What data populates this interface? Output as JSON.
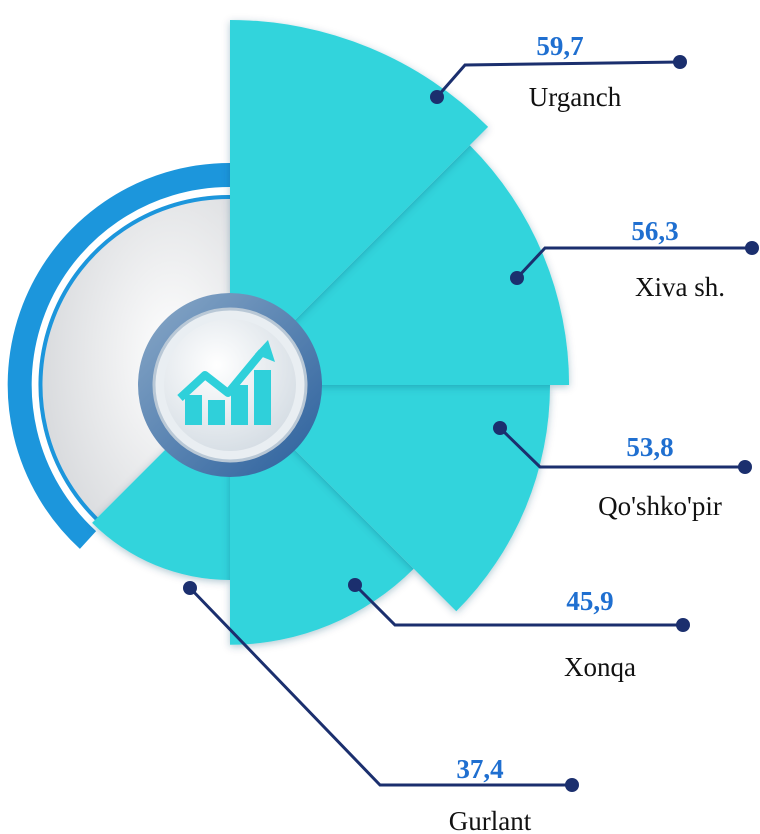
{
  "chart_data": {
    "type": "polar",
    "categories": [
      "Urganch",
      "Xiva sh.",
      "Qo'shko'pir",
      "Xonqa",
      "Gurlant"
    ],
    "values": [
      59.7,
      56.3,
      53.8,
      45.9,
      37.4
    ],
    "value_labels": [
      "59,7",
      "56,3",
      "53,8",
      "45,9",
      "37,4"
    ],
    "color": "#33d4dc"
  }
}
